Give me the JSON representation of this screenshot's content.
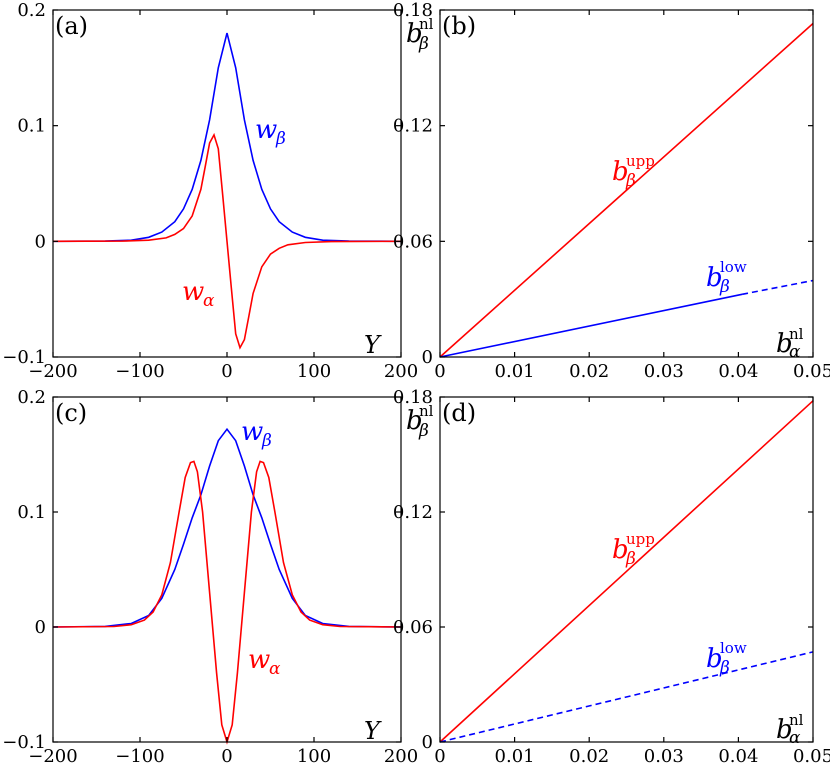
{
  "chart_data": [
    {
      "id": "a",
      "type": "line",
      "panel_label": "(a)",
      "xlabel": "Y",
      "ylabel": "",
      "xlim": [
        -200,
        200
      ],
      "ylim": [
        -0.1,
        0.2
      ],
      "xticks": [
        -200,
        -100,
        0,
        100,
        200
      ],
      "xtick_labels": [
        "−200",
        "−100",
        "0",
        "100",
        "200"
      ],
      "yticks": [
        -0.1,
        0,
        0.1,
        0.2
      ],
      "ytick_labels": [
        "−0.1",
        "0",
        "0.1",
        "0.2"
      ],
      "grid": false,
      "series": [
        {
          "label_base": "w",
          "label_sub": "β",
          "color": "#0000ff",
          "style": "solid",
          "x": [
            -200,
            -140,
            -110,
            -90,
            -75,
            -60,
            -50,
            -40,
            -30,
            -20,
            -10,
            0,
            10,
            20,
            30,
            40,
            50,
            60,
            75,
            90,
            110,
            140,
            200
          ],
          "y": [
            0,
            0.0002,
            0.001,
            0.0035,
            0.008,
            0.017,
            0.028,
            0.045,
            0.07,
            0.105,
            0.15,
            0.18,
            0.15,
            0.105,
            0.07,
            0.045,
            0.028,
            0.017,
            0.008,
            0.0035,
            0.001,
            0.0002,
            0
          ]
        },
        {
          "label_base": "w",
          "label_sub": "α",
          "color": "#ff0000",
          "style": "solid",
          "x": [
            -200,
            -120,
            -90,
            -70,
            -60,
            -50,
            -40,
            -30,
            -25,
            -20,
            -15,
            -10,
            -5,
            0,
            5,
            10,
            15,
            20,
            25,
            30,
            40,
            50,
            60,
            70,
            90,
            120,
            200
          ],
          "y": [
            0,
            0.0002,
            0.001,
            0.003,
            0.006,
            0.011,
            0.022,
            0.045,
            0.065,
            0.085,
            0.092,
            0.08,
            0.04,
            0,
            -0.04,
            -0.08,
            -0.092,
            -0.085,
            -0.065,
            -0.045,
            -0.022,
            -0.011,
            -0.006,
            -0.003,
            -0.001,
            -0.0002,
            0
          ]
        }
      ]
    },
    {
      "id": "b",
      "type": "line",
      "panel_label": "(b)",
      "xlabel_base": "b",
      "xlabel_sub": "α",
      "xlabel_sup": "nl",
      "ylabel_base": "b",
      "ylabel_sub": "β",
      "ylabel_sup": "nl",
      "xlim": [
        0,
        0.05
      ],
      "ylim": [
        0,
        0.18
      ],
      "xticks": [
        0,
        0.01,
        0.02,
        0.03,
        0.04,
        0.05
      ],
      "xtick_labels": [
        "0",
        "0.01",
        "0.02",
        "0.03",
        "0.04",
        "0.05"
      ],
      "yticks": [
        0,
        0.06,
        0.12,
        0.18
      ],
      "ytick_labels": [
        "0",
        "0.06",
        "0.12",
        "0.18"
      ],
      "grid": false,
      "series": [
        {
          "label_base": "b",
          "label_sub": "β",
          "label_sup": "upp",
          "color": "#ff0000",
          "style": "solid",
          "x": [
            0,
            0.05
          ],
          "y": [
            0,
            0.173
          ]
        },
        {
          "label_base": "b",
          "label_sub": "β",
          "label_sup": "low",
          "color": "#0000ff",
          "style": "solid",
          "x": [
            0,
            0.0405
          ],
          "y": [
            0,
            0.0325
          ]
        },
        {
          "label_base": "",
          "color": "#0000ff",
          "style": "dashed",
          "x": [
            0.0405,
            0.05
          ],
          "y": [
            0.0325,
            0.0397
          ]
        }
      ]
    },
    {
      "id": "c",
      "type": "line",
      "panel_label": "(c)",
      "xlabel": "Y",
      "ylabel": "",
      "xlim": [
        -200,
        200
      ],
      "ylim": [
        -0.1,
        0.2
      ],
      "xticks": [
        -200,
        -100,
        0,
        100,
        200
      ],
      "xtick_labels": [
        "−200",
        "−100",
        "0",
        "100",
        "200"
      ],
      "yticks": [
        -0.1,
        0,
        0.1,
        0.2
      ],
      "ytick_labels": [
        "−0.1",
        "0",
        "0.1",
        "0.2"
      ],
      "grid": false,
      "series": [
        {
          "label_base": "w",
          "label_sub": "β",
          "color": "#0000ff",
          "style": "solid",
          "x": [
            -200,
            -140,
            -110,
            -90,
            -75,
            -60,
            -50,
            -40,
            -30,
            -20,
            -10,
            0,
            10,
            20,
            30,
            40,
            50,
            60,
            75,
            90,
            110,
            140,
            200
          ],
          "y": [
            0,
            0.0005,
            0.003,
            0.01,
            0.025,
            0.05,
            0.072,
            0.095,
            0.115,
            0.14,
            0.162,
            0.172,
            0.162,
            0.14,
            0.115,
            0.095,
            0.072,
            0.05,
            0.025,
            0.01,
            0.003,
            0.0005,
            0
          ]
        },
        {
          "label_base": "w",
          "label_sub": "α",
          "color": "#ff0000",
          "style": "solid",
          "x": [
            -200,
            -130,
            -110,
            -95,
            -85,
            -75,
            -65,
            -55,
            -48,
            -42,
            -38,
            -34,
            -28,
            -20,
            -12,
            -6,
            0,
            6,
            12,
            20,
            28,
            34,
            38,
            42,
            48,
            55,
            65,
            75,
            85,
            95,
            110,
            130,
            200
          ],
          "y": [
            0,
            0.0004,
            0.002,
            0.006,
            0.013,
            0.028,
            0.056,
            0.1,
            0.13,
            0.143,
            0.144,
            0.135,
            0.1,
            0.03,
            -0.04,
            -0.085,
            -0.1,
            -0.085,
            -0.04,
            0.03,
            0.1,
            0.135,
            0.144,
            0.143,
            0.13,
            0.1,
            0.056,
            0.028,
            0.013,
            0.006,
            0.002,
            0.0004,
            0
          ]
        }
      ]
    },
    {
      "id": "d",
      "type": "line",
      "panel_label": "(d)",
      "xlabel_base": "b",
      "xlabel_sub": "α",
      "xlabel_sup": "nl",
      "ylabel_base": "b",
      "ylabel_sub": "β",
      "ylabel_sup": "nl",
      "xlim": [
        0,
        0.05
      ],
      "ylim": [
        0,
        0.18
      ],
      "xticks": [
        0,
        0.01,
        0.02,
        0.03,
        0.04,
        0.05
      ],
      "xtick_labels": [
        "0",
        "0.01",
        "0.02",
        "0.03",
        "0.04",
        "0.05"
      ],
      "yticks": [
        0,
        0.06,
        0.12,
        0.18
      ],
      "ytick_labels": [
        "0",
        "0.06",
        "0.12",
        "0.18"
      ],
      "grid": false,
      "series": [
        {
          "label_base": "b",
          "label_sub": "β",
          "label_sup": "upp",
          "color": "#ff0000",
          "style": "solid",
          "x": [
            0,
            0.05
          ],
          "y": [
            0,
            0.178
          ]
        },
        {
          "label_base": "b",
          "label_sub": "β",
          "label_sup": "low",
          "color": "#0000ff",
          "style": "dashed",
          "x": [
            0,
            0.05
          ],
          "y": [
            0,
            0.047
          ]
        }
      ]
    }
  ]
}
